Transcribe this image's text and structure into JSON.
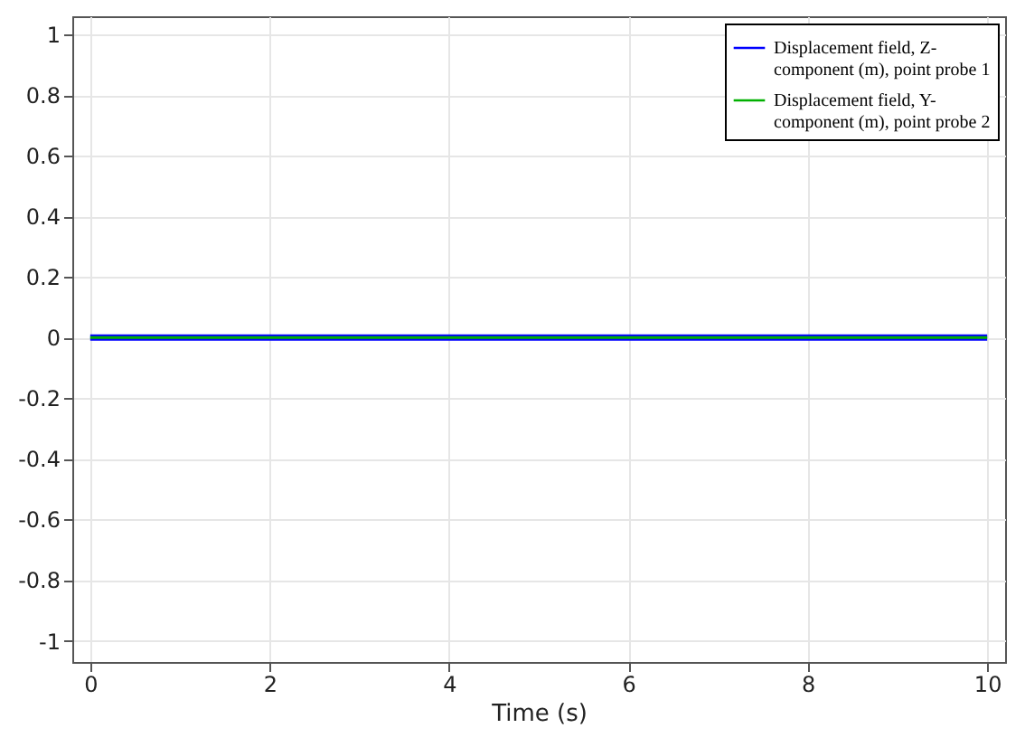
{
  "chart_data": {
    "type": "line",
    "xlabel": "Time (s)",
    "x": [
      0,
      10
    ],
    "series": [
      {
        "name": "Displacement field, Z-component (m), point probe 1",
        "color": "#0000ff",
        "values": [
          0,
          0
        ]
      },
      {
        "name": "Displacement field, Y-component (m), point probe 2",
        "color": "#00b000",
        "values": [
          0,
          0
        ]
      }
    ],
    "xlim": [
      -0.2,
      10.2
    ],
    "xticks": [
      0,
      2,
      4,
      6,
      8,
      10
    ],
    "ylim": [
      -1.07,
      1.06
    ],
    "yticks": [
      -1,
      -0.8,
      -0.6,
      -0.4,
      -0.2,
      0,
      0.2,
      0.4,
      0.6,
      0.8,
      1
    ],
    "grid": true,
    "legend": "top right",
    "marker": "none",
    "line_style": "solid"
  }
}
